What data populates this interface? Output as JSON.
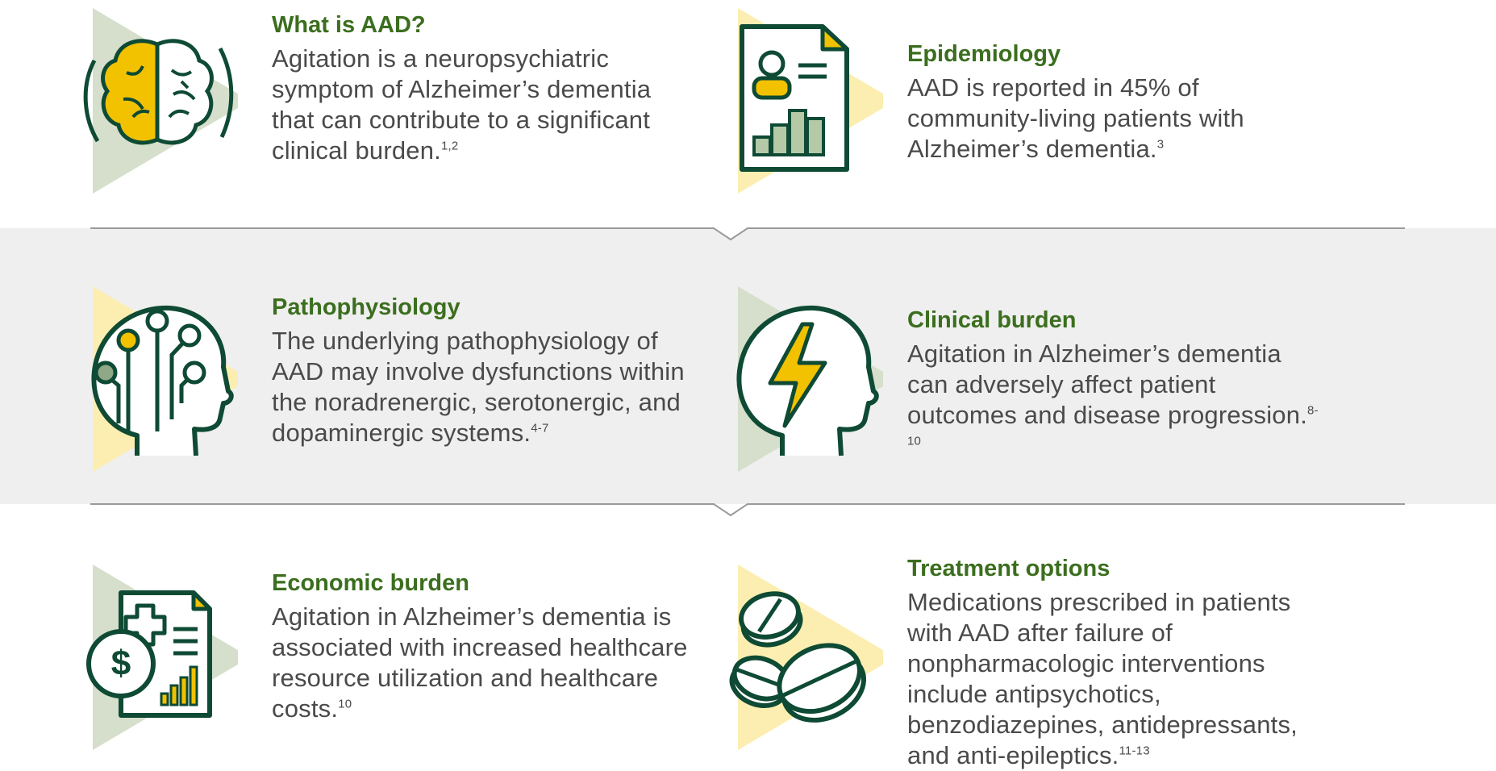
{
  "sections": {
    "what_is": {
      "title": "What is AAD?",
      "body": "Agitation is a neuropsychiatric symptom of Alzheimer’s dementia that can contribute to a significant clinical burden.",
      "ref": "1,2",
      "icon": "brain-icon"
    },
    "epidemiology": {
      "title": "Epidemiology",
      "body": "AAD is reported in 45% of community-living patients with Alzheimer’s dementia.",
      "ref": "3",
      "icon": "patient-report-icon"
    },
    "pathophysiology": {
      "title": "Pathophysiology",
      "body": "The underlying pathophysiology of AAD may involve dysfunctions within the noradrenergic, serotonergic, and dopaminergic systems.",
      "ref": "4-7",
      "icon": "head-circuit-icon"
    },
    "clinical_burden": {
      "title": "Clinical burden",
      "body": "Agitation in Alzheimer’s dementia can adversely affect patient outcomes and disease progression.",
      "ref": "8-10",
      "icon": "head-lightning-icon"
    },
    "economic_burden": {
      "title": "Economic burden",
      "body": "Agitation in Alzheimer’s dementia is associated with increased healthcare resource utilization and healthcare costs.",
      "ref": "10",
      "icon": "medical-bill-icon"
    },
    "treatment": {
      "title": "Treatment options",
      "body": "Medications prescribed in patients with AAD after failure of nonpharmacologic interventions include antipsychotics, benzodiazepines, antidepressants, and anti-epileptics.",
      "ref": "11-13",
      "icon": "pills-icon"
    }
  },
  "colors": {
    "title_green": "#3b6e1e",
    "icon_dark": "#0e4a34",
    "accent_yellow": "#f2c200",
    "sage": "#d5dfcb",
    "pale_yellow": "#fbeeb0",
    "band_gray": "#efefef"
  }
}
